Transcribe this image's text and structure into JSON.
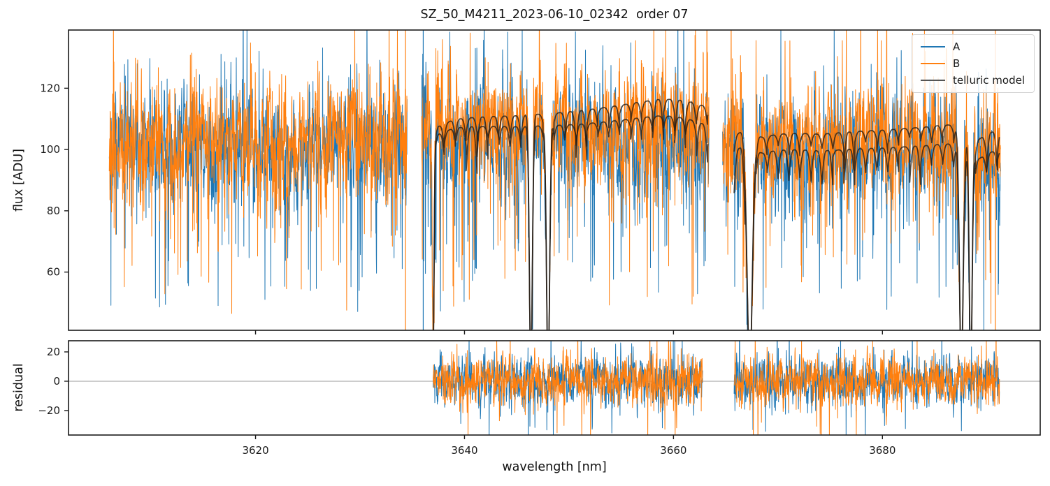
{
  "title": "SZ_50_M4211_2023-06-10_02342  order 07",
  "chart_data": {
    "type": "line",
    "title": "SZ_50_M4211_2023-06-10_02342  order 07",
    "xlabel": "wavelength [nm]",
    "xlim": [
      3602.1,
      3695.1
    ],
    "xticks": [
      3620,
      3640,
      3660,
      3680
    ],
    "grid": false,
    "colors": {
      "A": "#1f77b4",
      "B": "#ff7f0e",
      "telluric_line": "rgba(35,30,25,0.8)",
      "legend_telluric": "#555555",
      "axis": "#1a1a1a",
      "zero_line": "#9b9b9b"
    },
    "legend": {
      "position": "upper right",
      "entries": [
        {
          "label": "A",
          "series": "A"
        },
        {
          "label": "B",
          "series": "B"
        },
        {
          "label": "telluric model",
          "series": "telluric"
        }
      ]
    },
    "panels": {
      "flux": {
        "ylabel": "flux [ADU]",
        "ylim": [
          41,
          139
        ],
        "yticks": [
          60,
          80,
          100,
          120
        ]
      },
      "residual": {
        "ylabel": "residual",
        "ylim": [
          -36.7,
          27.6
        ],
        "yticks": [
          -20,
          0,
          20
        ],
        "zero_line_y": 0
      }
    },
    "segments": [
      {
        "id": 1,
        "range": [
          3606.0,
          3634.5
        ],
        "baseline": {
          "A": 101.0,
          "B": 103.5
        },
        "noise_sigma": 8,
        "has_telluric": false,
        "has_residual": false,
        "deep_lines": []
      },
      {
        "id": 2,
        "range": [
          3635.9,
          3663.4
        ],
        "baseline": {
          "A": 103.0,
          "B": 107.0
        },
        "noise_sigma": 8,
        "has_telluric": true,
        "has_residual": true,
        "model_range": [
          3637.0,
          3663.3
        ],
        "model_upper_continuum": [
          [
            3637.0,
            103.5
          ],
          [
            3637.5,
            107.5
          ],
          [
            3639.0,
            109.8
          ],
          [
            3641.0,
            110.5
          ],
          [
            3643.0,
            110.8
          ],
          [
            3645.0,
            111.0
          ],
          [
            3647.0,
            111.5
          ],
          [
            3649.0,
            112.0
          ],
          [
            3651.0,
            112.6
          ],
          [
            3653.0,
            113.5
          ],
          [
            3655.0,
            114.5
          ],
          [
            3657.0,
            115.6
          ],
          [
            3658.5,
            116.3
          ],
          [
            3660.0,
            116.4
          ],
          [
            3661.5,
            115.6
          ],
          [
            3663.3,
            113.8
          ]
        ],
        "model_offset": [
          2.5,
          6.0
        ],
        "deep_lines": [
          {
            "center": 3637.0,
            "width": 0.12,
            "depth": 0.9
          },
          {
            "center": 3646.35,
            "width": 0.2,
            "depth": 1.0
          },
          {
            "center": 3648.0,
            "width": 0.22,
            "depth": 1.0
          }
        ],
        "residual_range": [
          3637.0,
          3662.8
        ]
      },
      {
        "id": 3,
        "range": [
          3664.7,
          3691.3
        ],
        "baseline": {
          "A": 98.0,
          "B": 102.0
        },
        "noise_sigma": 8,
        "has_telluric": true,
        "has_residual": true,
        "model_range": [
          3665.8,
          3691.2
        ],
        "model_upper_continuum": [
          [
            3665.8,
            104.5
          ],
          [
            3666.6,
            106.0
          ],
          [
            3668.5,
            104.0
          ],
          [
            3670.0,
            105.0
          ],
          [
            3672.0,
            105.3
          ],
          [
            3674.0,
            105.0
          ],
          [
            3676.0,
            105.5
          ],
          [
            3678.0,
            106.0
          ],
          [
            3680.0,
            106.3
          ],
          [
            3682.0,
            106.8
          ],
          [
            3684.0,
            107.3
          ],
          [
            3686.0,
            108.0
          ],
          [
            3687.0,
            108.0
          ],
          [
            3689.3,
            103.5
          ],
          [
            3690.3,
            105.5
          ],
          [
            3691.2,
            106.3
          ]
        ],
        "model_offset": [
          5.0,
          6.5
        ],
        "deep_lines": [
          {
            "center": 3667.3,
            "width": 0.35,
            "depth": 1.0
          },
          {
            "center": 3687.55,
            "width": 0.25,
            "depth": 1.0
          },
          {
            "center": 3688.45,
            "width": 0.2,
            "depth": 1.0
          }
        ],
        "residual_range": [
          3665.8,
          3691.2
        ]
      }
    ],
    "scallops": {
      "period_nm": 1.05,
      "depth_min": 2,
      "depth_max": 8,
      "extra_deep_chance": 0.18,
      "extra_deep_max": 13
    },
    "spikes": {
      "down_prob": 0.1,
      "down_max": 45,
      "up_prob": 0.05,
      "up_max": 32
    },
    "residual_noise": {
      "sigma": 7,
      "spike_prob": 0.04,
      "spike_max": 28
    },
    "edge_spikes": [
      {
        "wavelength": 3634.35,
        "series": "B"
      },
      {
        "wavelength": 3636.05,
        "series": "A"
      },
      {
        "wavelength": 3690.8,
        "series": "B"
      }
    ]
  }
}
